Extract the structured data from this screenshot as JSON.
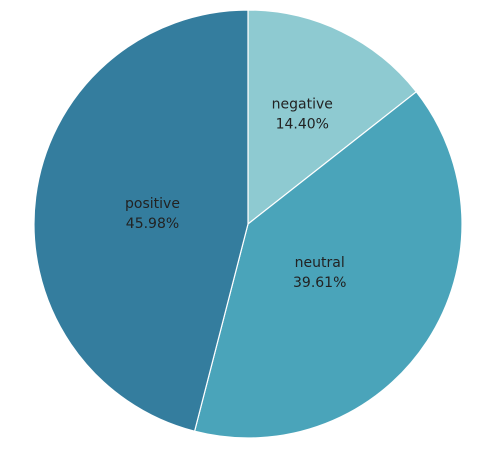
{
  "chart_data": {
    "type": "pie",
    "start_angle_deg": 0,
    "direction": "clockwise",
    "slices": [
      {
        "name": "negative",
        "value": 14.4,
        "value_label": "14.40%",
        "color": "#8ECAD1"
      },
      {
        "name": "neutral",
        "value": 39.61,
        "value_label": "39.61%",
        "color": "#4AA4BA"
      },
      {
        "name": "positive",
        "value": 45.98,
        "value_label": "45.98%",
        "color": "#347D9E"
      }
    ]
  }
}
